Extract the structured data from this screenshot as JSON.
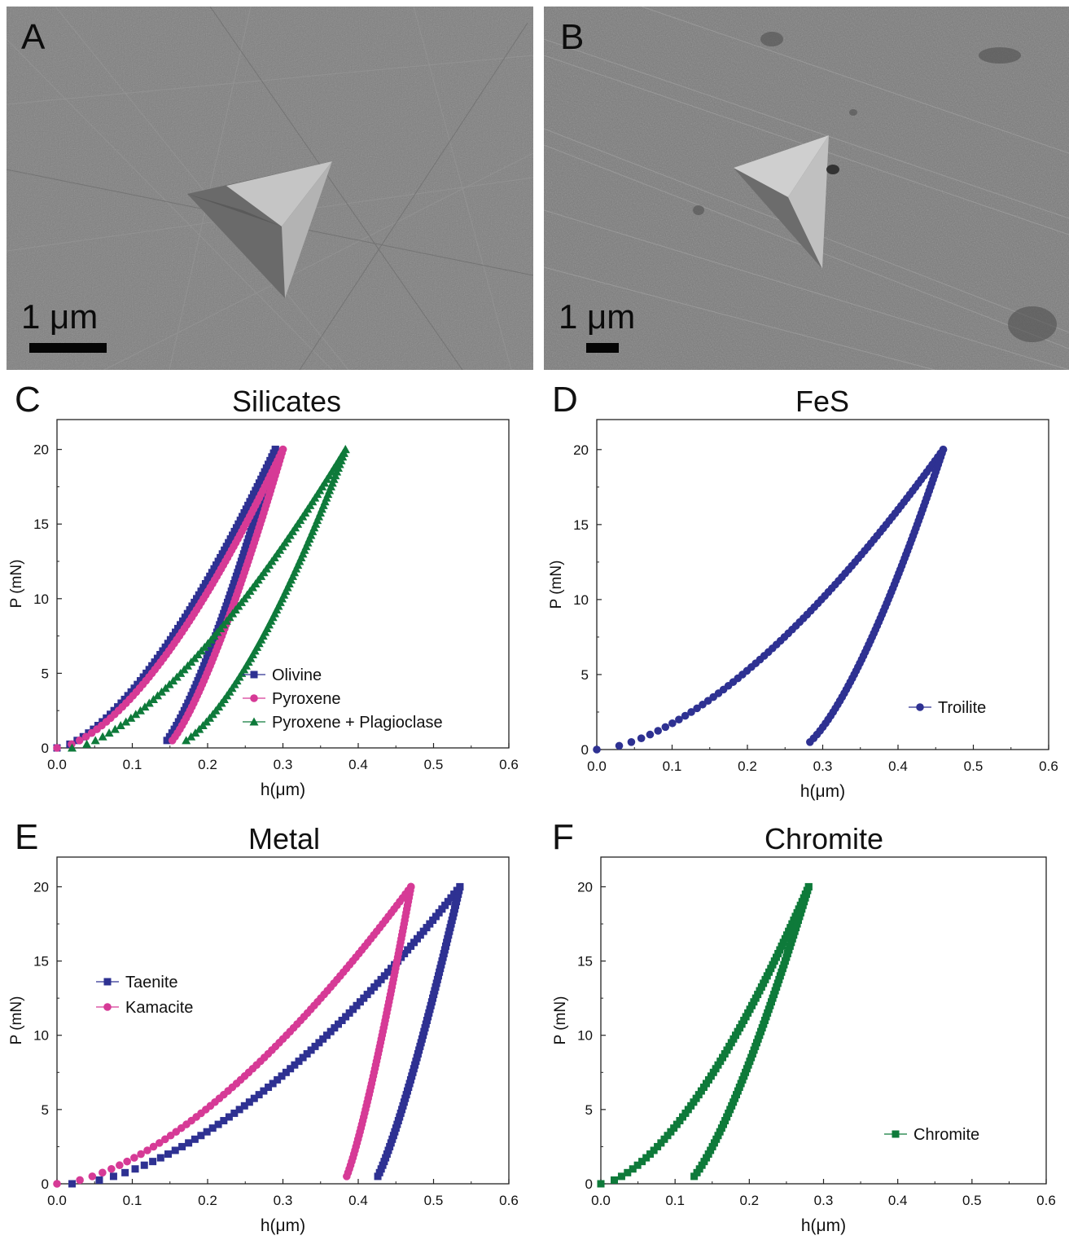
{
  "micrographs": [
    {
      "letter": "A",
      "scale_label": "1 μm"
    },
    {
      "letter": "B",
      "scale_label": "1 μm"
    }
  ],
  "chart_data": [
    {
      "panel": "C",
      "type": "scatter",
      "title": "Silicates",
      "xlabel": "h(μm)",
      "ylabel": "P (mN)",
      "xlim": [
        0.0,
        0.6
      ],
      "ylim": [
        0,
        22
      ],
      "xticks": [
        "0.0",
        "0.1",
        "0.2",
        "0.3",
        "0.4",
        "0.5",
        "0.6"
      ],
      "yticks": [
        "0",
        "5",
        "10",
        "15",
        "20"
      ],
      "legend_position": "bottom-right",
      "series": [
        {
          "name": "Olivine",
          "color": "#2e3192",
          "marker": "square",
          "loading": {
            "h_max": 0.29,
            "exponent": 1.55,
            "h0": 0
          },
          "unloading": {
            "h_max": 0.29,
            "h_final": 0.136,
            "exponent": 1.35
          }
        },
        {
          "name": "Pyroxene",
          "color": "#d63a96",
          "marker": "circle",
          "loading": {
            "h_max": 0.3,
            "exponent": 1.6,
            "h0": 0
          },
          "unloading": {
            "h_max": 0.3,
            "h_final": 0.143,
            "exponent": 1.35
          }
        },
        {
          "name": "Pyroxene + Plagioclase",
          "color": "#0e7a3a",
          "marker": "triangle",
          "loading": {
            "h_max": 0.383,
            "exponent": 1.5,
            "h0": 0.02
          },
          "unloading": {
            "h_max": 0.383,
            "h_final": 0.15,
            "exponent": 1.55
          }
        }
      ]
    },
    {
      "panel": "D",
      "type": "scatter",
      "title": "FeS",
      "xlabel": "h(μm)",
      "ylabel": "P (mN)",
      "xlim": [
        0.0,
        0.6
      ],
      "ylim": [
        0,
        22
      ],
      "xticks": [
        "0.0",
        "0.1",
        "0.2",
        "0.3",
        "0.4",
        "0.5",
        "0.6"
      ],
      "yticks": [
        "0",
        "5",
        "10",
        "15",
        "20"
      ],
      "legend_position": "lower-right",
      "series": [
        {
          "name": "Troilite",
          "color": "#2e3192",
          "marker": "circle",
          "loading": {
            "h_max": 0.46,
            "exponent": 1.6,
            "h0": 0
          },
          "unloading": {
            "h_max": 0.46,
            "h_final": 0.268,
            "exponent": 1.45
          }
        }
      ]
    },
    {
      "panel": "E",
      "type": "scatter",
      "title": "Metal",
      "xlabel": "h(μm)",
      "ylabel": "P (mN)",
      "xlim": [
        0.0,
        0.6
      ],
      "ylim": [
        0,
        22
      ],
      "xticks": [
        "0.0",
        "0.1",
        "0.2",
        "0.3",
        "0.4",
        "0.5",
        "0.6"
      ],
      "yticks": [
        "0",
        "5",
        "10",
        "15",
        "20"
      ],
      "legend_position": "middle-left",
      "series": [
        {
          "name": "Taenite",
          "color": "#2e3192",
          "marker": "square",
          "loading": {
            "h_max": 0.535,
            "exponent": 1.65,
            "h0": 0.02
          },
          "unloading": {
            "h_max": 0.535,
            "h_final": 0.42,
            "exponent": 1.25
          }
        },
        {
          "name": "Kamacite",
          "color": "#d63a96",
          "marker": "circle",
          "loading": {
            "h_max": 0.47,
            "exponent": 1.6,
            "h0": 0
          },
          "unloading": {
            "h_max": 0.47,
            "h_final": 0.38,
            "exponent": 1.25
          }
        }
      ]
    },
    {
      "panel": "F",
      "type": "scatter",
      "title": "Chromite",
      "xlabel": "h(μm)",
      "ylabel": "P (mN)",
      "xlim": [
        0.0,
        0.6
      ],
      "ylim": [
        0,
        22
      ],
      "xticks": [
        "0.0",
        "0.1",
        "0.2",
        "0.3",
        "0.4",
        "0.5",
        "0.6"
      ],
      "yticks": [
        "0",
        "5",
        "10",
        "15",
        "20"
      ],
      "legend_position": "lower-right",
      "series": [
        {
          "name": "Chromite",
          "color": "#0e7a3a",
          "marker": "square",
          "loading": {
            "h_max": 0.28,
            "exponent": 1.6,
            "h0": 0
          },
          "unloading": {
            "h_max": 0.28,
            "h_final": 0.115,
            "exponent": 1.35
          }
        }
      ]
    }
  ]
}
